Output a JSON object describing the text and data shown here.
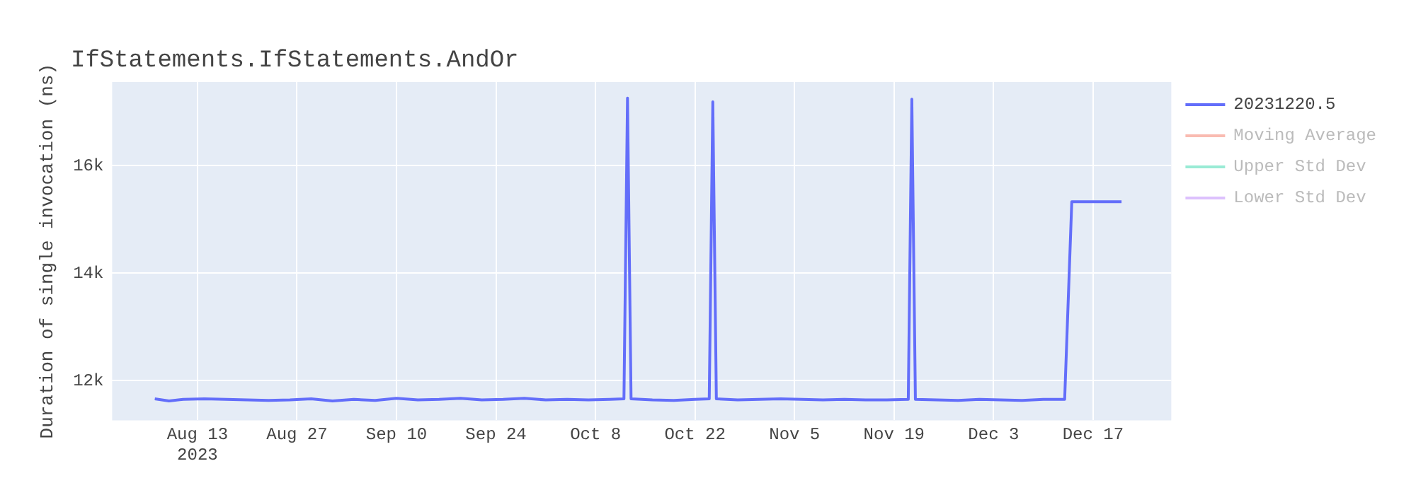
{
  "chart_data": {
    "type": "line",
    "title": "IfStatements.IfStatements.AndOr",
    "ylabel": "Duration of single invocation (ns)",
    "x": [
      "2023-08-07",
      "2023-08-09",
      "2023-08-11",
      "2023-08-14",
      "2023-08-17",
      "2023-08-20",
      "2023-08-23",
      "2023-08-26",
      "2023-08-29",
      "2023-09-01",
      "2023-09-04",
      "2023-09-07",
      "2023-09-10",
      "2023-09-13",
      "2023-09-16",
      "2023-09-19",
      "2023-09-22",
      "2023-09-25",
      "2023-09-28",
      "2023-10-01",
      "2023-10-04",
      "2023-10-07",
      "2023-10-10",
      "2023-10-12",
      "2023-10-12T12:00",
      "2023-10-13",
      "2023-10-16",
      "2023-10-19",
      "2023-10-22",
      "2023-10-24",
      "2023-10-24T12:00",
      "2023-10-25",
      "2023-10-28",
      "2023-10-31",
      "2023-11-03",
      "2023-11-06",
      "2023-11-09",
      "2023-11-12",
      "2023-11-15",
      "2023-11-18",
      "2023-11-21",
      "2023-11-21T12:00",
      "2023-11-22",
      "2023-11-25",
      "2023-11-28",
      "2023-12-01",
      "2023-12-04",
      "2023-12-07",
      "2023-12-10",
      "2023-12-13",
      "2023-12-14",
      "2023-12-17",
      "2023-12-21"
    ],
    "series": [
      {
        "name": "20231220.5",
        "color": "#636efa",
        "values": [
          11660,
          11620,
          11650,
          11660,
          11650,
          11640,
          11630,
          11640,
          11660,
          11620,
          11650,
          11630,
          11670,
          11640,
          11650,
          11670,
          11640,
          11650,
          11670,
          11640,
          11650,
          11640,
          11650,
          11660,
          17260,
          11660,
          11640,
          11630,
          11650,
          11660,
          17190,
          11660,
          11640,
          11650,
          11660,
          11650,
          11640,
          11650,
          11640,
          11640,
          11650,
          17240,
          11650,
          11640,
          11630,
          11650,
          11640,
          11630,
          11650,
          11650,
          15330,
          15330,
          15330
        ]
      },
      {
        "name": "Moving Average",
        "color": "#ef553b",
        "values": [
          null,
          null,
          null,
          null,
          null,
          null,
          null,
          null,
          null,
          null,
          null,
          null,
          null,
          null,
          null,
          null,
          null,
          null,
          null,
          null,
          null,
          null,
          null,
          null,
          null,
          null,
          null,
          null,
          null,
          null,
          null,
          null,
          null,
          null,
          null,
          null,
          null,
          null,
          null,
          null,
          null,
          null,
          null,
          null,
          null,
          null,
          null,
          null,
          null,
          null,
          null,
          null,
          null
        ]
      },
      {
        "name": "Upper Std Dev",
        "color": "#00cc96",
        "values": [
          null,
          null,
          null,
          null,
          null,
          null,
          null,
          null,
          null,
          null,
          null,
          null,
          null,
          null,
          null,
          null,
          null,
          null,
          null,
          null,
          null,
          null,
          null,
          null,
          null,
          null,
          null,
          null,
          null,
          null,
          null,
          null,
          null,
          null,
          null,
          null,
          null,
          null,
          null,
          null,
          null,
          null,
          null,
          null,
          null,
          null,
          null,
          null,
          null,
          null,
          null,
          null,
          null
        ]
      },
      {
        "name": "Lower Std Dev",
        "color": "#ab63fa",
        "values": [
          null,
          null,
          null,
          null,
          null,
          null,
          null,
          null,
          null,
          null,
          null,
          null,
          null,
          null,
          null,
          null,
          null,
          null,
          null,
          null,
          null,
          null,
          null,
          null,
          null,
          null,
          null,
          null,
          null,
          null,
          null,
          null,
          null,
          null,
          null,
          null,
          null,
          null,
          null,
          null,
          null,
          null,
          null,
          null,
          null,
          null,
          null,
          null,
          null,
          null,
          null,
          null,
          null
        ]
      }
    ],
    "xlim": [
      "2023-08-01",
      "2023-12-28"
    ],
    "xticks": [
      {
        "value": "2023-08-13",
        "label": "Aug 13\n2023"
      },
      {
        "value": "2023-08-27",
        "label": "Aug 27"
      },
      {
        "value": "2023-09-10",
        "label": "Sep 10"
      },
      {
        "value": "2023-09-24",
        "label": "Sep 24"
      },
      {
        "value": "2023-10-08",
        "label": "Oct 8"
      },
      {
        "value": "2023-10-22",
        "label": "Oct 22"
      },
      {
        "value": "2023-11-05",
        "label": "Nov 5"
      },
      {
        "value": "2023-11-19",
        "label": "Nov 19"
      },
      {
        "value": "2023-12-03",
        "label": "Dec 3"
      },
      {
        "value": "2023-12-17",
        "label": "Dec 17"
      }
    ],
    "ylim": [
      11260,
      17560
    ],
    "yticks": [
      {
        "value": 12000,
        "label": "12k"
      },
      {
        "value": 14000,
        "label": "14k"
      },
      {
        "value": 16000,
        "label": "16k"
      }
    ],
    "grid": true,
    "legend": "top right",
    "marker": "none",
    "line_style": "solid"
  }
}
